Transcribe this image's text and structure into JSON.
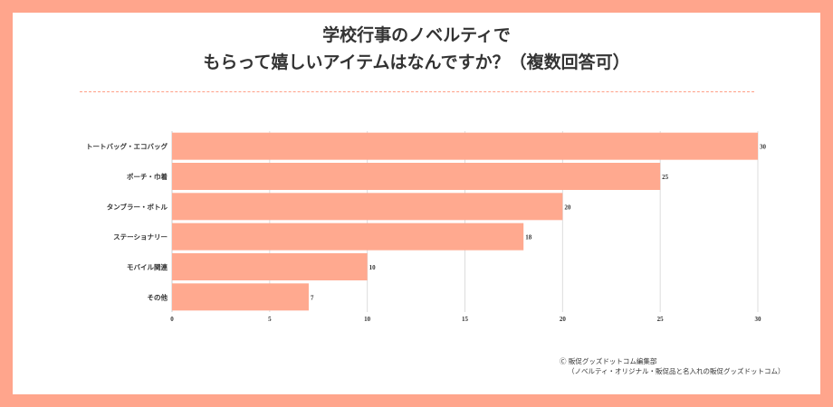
{
  "title": {
    "line1": "学校行事のノベルティで",
    "line2": "もらって嬉しいアイテムはなんですか？（複数回答可）"
  },
  "colors": {
    "frame": "#ffa58c",
    "bar": "#ffa98f",
    "grid": "#dddddd",
    "text": "#333333"
  },
  "chart_data": {
    "type": "bar",
    "orientation": "horizontal",
    "categories": [
      "トートバッグ・エコバッグ",
      "ポーチ・巾着",
      "タンブラー・ボトル",
      "ステーショナリー",
      "モバイル関連",
      "その他"
    ],
    "values": [
      30,
      25,
      20,
      18,
      10,
      7
    ],
    "xlim": [
      0,
      30
    ],
    "xticks": [
      0,
      5,
      10,
      15,
      20,
      25,
      30
    ],
    "grid": true,
    "legend": "none",
    "data_labels": true
  },
  "credit": {
    "line1": "Ⓒ 販促グッズドットコム編集部",
    "line2": "（ノベルティ・オリジナル・販促品と名入れの販促グッズドットコム）"
  }
}
